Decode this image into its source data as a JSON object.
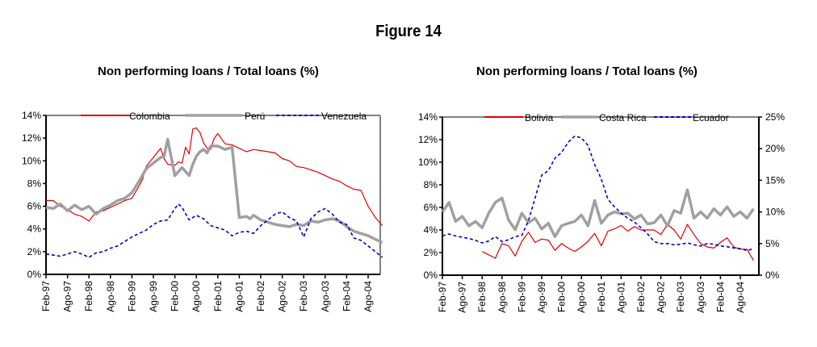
{
  "figure_title": "Figure 14",
  "chart_data": [
    {
      "type": "line",
      "title": "Non performing loans / Total loans (%)",
      "xlabel": "",
      "ylabel": "",
      "ylim": [
        0,
        14
      ],
      "yticks": [
        "0%",
        "2%",
        "4%",
        "6%",
        "8%",
        "10%",
        "12%",
        "14%"
      ],
      "yticks_values": [
        0,
        2,
        4,
        6,
        8,
        10,
        12,
        14
      ],
      "xtick_labels": [
        "Feb-97",
        "Ago-97",
        "Feb-98",
        "Ago-98",
        "Feb-99",
        "Ago-99",
        "Feb-00",
        "Ago-00",
        "Feb-01",
        "Ago-01",
        "Feb-02",
        "Ago-02",
        "Feb-03",
        "Ago-03",
        "Feb-04",
        "Ago-04"
      ],
      "x_months_from_feb97_range": [
        0,
        94
      ],
      "legend_position": "top",
      "series": [
        {
          "name": "Colombia",
          "color": "#e00000",
          "style": "solid",
          "axis": "left",
          "x": [
            0,
            2,
            4,
            6,
            8,
            10,
            12,
            14,
            16,
            18,
            20,
            22,
            24,
            26,
            27,
            28,
            30,
            32,
            33,
            34,
            36,
            37,
            38,
            39,
            40,
            41,
            42,
            43,
            44,
            45,
            46,
            47,
            48,
            50,
            52,
            54,
            56,
            58,
            60,
            62,
            64,
            66,
            68,
            70,
            72,
            74,
            76,
            78,
            80,
            82,
            84,
            86,
            88,
            90,
            92,
            94
          ],
          "y": [
            6.5,
            6.5,
            6.0,
            5.7,
            5.3,
            5.1,
            4.7,
            5.5,
            5.6,
            5.9,
            6.2,
            6.5,
            6.7,
            7.8,
            8.4,
            9.5,
            10.3,
            11.1,
            10.2,
            9.7,
            9.6,
            9.9,
            9.8,
            11.2,
            10.6,
            12.8,
            12.9,
            12.5,
            11.6,
            11.1,
            11.0,
            12.0,
            12.4,
            11.5,
            11.4,
            11.1,
            10.8,
            11.0,
            10.9,
            10.8,
            10.7,
            10.2,
            10.0,
            9.5,
            9.4,
            9.2,
            9.0,
            8.7,
            8.4,
            8.2,
            7.8,
            7.5,
            7.4,
            6.0,
            5.0,
            4.3
          ]
        },
        {
          "name": "Perú",
          "color": "#a0a0a0",
          "style": "thick",
          "axis": "left",
          "x": [
            0,
            2,
            4,
            6,
            8,
            10,
            12,
            14,
            16,
            18,
            20,
            22,
            24,
            26,
            28,
            30,
            32,
            33,
            34,
            36,
            38,
            40,
            41,
            42,
            43,
            44,
            45,
            46,
            48,
            50,
            52,
            54,
            56,
            57,
            58,
            60,
            62,
            64,
            66,
            68,
            70,
            72,
            74,
            76,
            78,
            80,
            82,
            84,
            86,
            88,
            90,
            92,
            94
          ],
          "y": [
            5.9,
            5.8,
            6.2,
            5.6,
            6.1,
            5.7,
            6.0,
            5.3,
            5.8,
            6.1,
            6.5,
            6.7,
            7.2,
            8.2,
            9.3,
            9.8,
            10.3,
            10.4,
            11.9,
            8.7,
            9.4,
            8.7,
            9.7,
            10.4,
            10.8,
            11.0,
            10.7,
            11.3,
            11.3,
            11.0,
            11.2,
            5.0,
            5.1,
            4.9,
            5.2,
            4.8,
            4.6,
            4.4,
            4.3,
            4.2,
            4.4,
            4.3,
            4.7,
            4.6,
            4.8,
            4.9,
            4.7,
            4.2,
            3.8,
            3.6,
            3.4,
            3.1,
            2.8
          ]
        },
        {
          "name": "Venezuela",
          "color": "#0000cc",
          "style": "dashed",
          "axis": "left",
          "x": [
            0,
            2,
            4,
            6,
            8,
            10,
            12,
            14,
            16,
            18,
            20,
            22,
            24,
            26,
            28,
            30,
            32,
            34,
            36,
            37,
            38,
            40,
            42,
            44,
            46,
            48,
            50,
            52,
            54,
            56,
            58,
            60,
            62,
            64,
            66,
            68,
            70,
            72,
            74,
            76,
            78,
            80,
            82,
            84,
            86,
            88,
            90,
            92,
            94
          ],
          "y": [
            1.8,
            1.7,
            1.6,
            1.8,
            2.0,
            1.8,
            1.5,
            1.9,
            2.0,
            2.3,
            2.5,
            2.9,
            3.3,
            3.6,
            3.9,
            4.4,
            4.7,
            4.8,
            5.8,
            6.2,
            5.9,
            4.8,
            5.2,
            4.9,
            4.3,
            4.1,
            3.9,
            3.4,
            3.7,
            3.8,
            3.6,
            4.3,
            4.8,
            5.3,
            5.5,
            5.0,
            4.7,
            3.3,
            4.9,
            5.5,
            5.8,
            5.3,
            4.6,
            4.4,
            3.2,
            3.0,
            2.5,
            2.0,
            1.5
          ]
        }
      ]
    },
    {
      "type": "line",
      "title": "Non performing loans / Total loans (%)",
      "xlabel": "",
      "ylabel": "",
      "ylim": [
        0,
        14
      ],
      "y2lim": [
        0,
        25
      ],
      "yticks": [
        "0%",
        "2%",
        "4%",
        "6%",
        "8%",
        "10%",
        "12%",
        "14%"
      ],
      "yticks_values": [
        0,
        2,
        4,
        6,
        8,
        10,
        12,
        14
      ],
      "y2ticks": [
        "0%",
        "5%",
        "10%",
        "15%",
        "20%",
        "25%"
      ],
      "y2ticks_values": [
        0,
        5,
        10,
        15,
        20,
        25
      ],
      "xtick_labels": [
        "Feb-97",
        "Ago-97",
        "Feb-98",
        "Ago-98",
        "Feb-99",
        "Ago-99",
        "Feb-00",
        "Ago-00",
        "Feb-01",
        "Ago-01",
        "Feb-02",
        "Ago-02",
        "Feb-03",
        "Ago-03",
        "Feb-04",
        "Ago-04"
      ],
      "x_months_from_feb97_range": [
        0,
        94
      ],
      "legend_position": "top",
      "series": [
        {
          "name": "Bolivia",
          "color": "#e00000",
          "style": "solid",
          "axis": "left",
          "x": [
            12,
            14,
            16,
            18,
            20,
            22,
            24,
            26,
            28,
            30,
            32,
            34,
            36,
            38,
            40,
            42,
            44,
            46,
            48,
            50,
            52,
            54,
            56,
            58,
            60,
            62,
            64,
            66,
            68,
            70,
            72,
            74,
            76,
            78,
            80,
            82,
            84,
            86,
            88,
            90,
            92,
            94
          ],
          "y": [
            2.1,
            1.8,
            1.5,
            2.8,
            2.6,
            1.7,
            3.0,
            3.8,
            2.9,
            3.2,
            3.1,
            2.2,
            2.8,
            2.4,
            2.1,
            2.5,
            3.0,
            3.7,
            2.6,
            3.9,
            4.1,
            4.4,
            3.9,
            4.3,
            4.0,
            4.0,
            4.0,
            3.6,
            4.5,
            4.0,
            3.2,
            4.5,
            3.6,
            2.8,
            2.5,
            2.4,
            2.9,
            3.3,
            2.5,
            2.3,
            2.3,
            1.3
          ]
        },
        {
          "name": "Costa Rica",
          "color": "#a0a0a0",
          "style": "thick",
          "axis": "right",
          "x": [
            0,
            2,
            4,
            6,
            8,
            10,
            12,
            14,
            16,
            18,
            20,
            22,
            24,
            26,
            28,
            30,
            32,
            34,
            36,
            38,
            40,
            42,
            44,
            46,
            48,
            50,
            52,
            54,
            56,
            58,
            60,
            62,
            64,
            66,
            68,
            70,
            72,
            74,
            76,
            78,
            80,
            82,
            84,
            86,
            88,
            90,
            92,
            94
          ],
          "y": [
            10.0,
            11.5,
            8.5,
            9.3,
            7.8,
            8.5,
            7.5,
            9.8,
            11.5,
            12.2,
            8.7,
            7.2,
            9.8,
            8.3,
            9.0,
            7.3,
            8.2,
            6.1,
            7.8,
            8.2,
            8.5,
            9.5,
            7.8,
            11.8,
            8.2,
            9.5,
            10.0,
            9.7,
            9.8,
            8.9,
            9.5,
            8.1,
            8.3,
            9.5,
            7.8,
            10.2,
            9.8,
            13.5,
            9.0,
            10.0,
            9.0,
            10.5,
            9.5,
            10.8,
            9.3,
            10.0,
            9.0,
            10.5
          ]
        },
        {
          "name": "Ecuador",
          "color": "#0000cc",
          "style": "dashed",
          "axis": "right",
          "x": [
            0,
            2,
            4,
            6,
            8,
            10,
            12,
            14,
            16,
            18,
            20,
            22,
            24,
            26,
            28,
            30,
            32,
            34,
            36,
            38,
            40,
            42,
            44,
            46,
            48,
            50,
            52,
            54,
            56,
            58,
            60,
            62,
            64,
            66,
            68,
            70,
            72,
            74,
            76,
            78,
            80,
            82,
            84,
            86,
            88,
            90,
            92,
            94
          ],
          "y": [
            6.2,
            6.5,
            6.2,
            6.0,
            5.8,
            5.5,
            5.1,
            5.4,
            6.1,
            5.3,
            5.6,
            6.1,
            6.3,
            8.6,
            12.2,
            15.8,
            16.5,
            18.5,
            19.4,
            21.0,
            22.0,
            21.7,
            20.5,
            17.5,
            15.2,
            12.0,
            10.8,
            9.8,
            9.0,
            8.4,
            7.5,
            6.5,
            5.3,
            5.0,
            5.0,
            4.8,
            4.9,
            5.1,
            4.8,
            4.6,
            5.0,
            4.9,
            4.6,
            4.5,
            4.3,
            4.2,
            3.9,
            4.2
          ]
        }
      ]
    }
  ]
}
